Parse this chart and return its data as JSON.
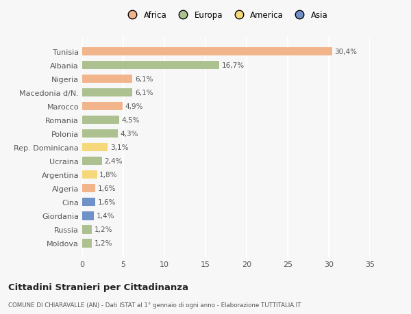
{
  "countries": [
    "Tunisia",
    "Albania",
    "Nigeria",
    "Macedonia d/N.",
    "Marocco",
    "Romania",
    "Polonia",
    "Rep. Dominicana",
    "Ucraina",
    "Argentina",
    "Algeria",
    "Cina",
    "Giordania",
    "Russia",
    "Moldova"
  ],
  "values": [
    30.4,
    16.7,
    6.1,
    6.1,
    4.9,
    4.5,
    4.3,
    3.1,
    2.4,
    1.8,
    1.6,
    1.6,
    1.4,
    1.2,
    1.2
  ],
  "labels": [
    "30,4%",
    "16,7%",
    "6,1%",
    "6,1%",
    "4,9%",
    "4,5%",
    "4,3%",
    "3,1%",
    "2,4%",
    "1,8%",
    "1,6%",
    "1,6%",
    "1,4%",
    "1,2%",
    "1,2%"
  ],
  "colors": [
    "#f2b48a",
    "#adc190",
    "#f2b48a",
    "#adc190",
    "#f2b48a",
    "#adc190",
    "#adc190",
    "#f5d87a",
    "#adc190",
    "#f5d87a",
    "#f2b48a",
    "#7090c8",
    "#7090c8",
    "#adc190",
    "#adc190"
  ],
  "legend_labels": [
    "Africa",
    "Europa",
    "America",
    "Asia"
  ],
  "legend_colors": [
    "#f2b48a",
    "#adc190",
    "#f5d87a",
    "#7090c8"
  ],
  "xlim": [
    0,
    35
  ],
  "xticks": [
    0,
    5,
    10,
    15,
    20,
    25,
    30,
    35
  ],
  "title": "Cittadini Stranieri per Cittadinanza",
  "subtitle": "COMUNE DI CHIARAVALLE (AN) - Dati ISTAT al 1° gennaio di ogni anno - Elaborazione TUTTITALIA.IT",
  "bg_color": "#f7f7f7",
  "grid_color": "#ffffff",
  "bar_height": 0.62
}
